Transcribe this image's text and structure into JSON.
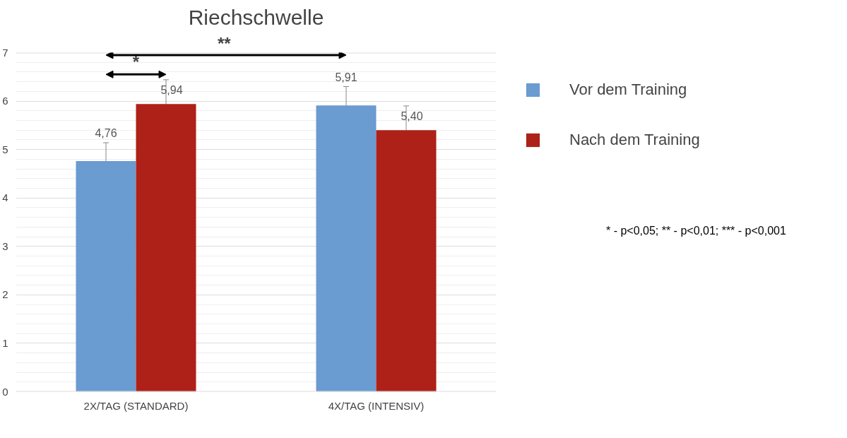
{
  "chart_data": {
    "type": "bar",
    "title": "Riechschwelle",
    "categories": [
      "2X/TAG (STANDARD)",
      "4X/TAG (INTENSIV)"
    ],
    "series": [
      {
        "name": "Vor dem Training",
        "color": "#6a9bd1",
        "values": [
          4.76,
          5.91
        ],
        "errors": [
          0.38,
          0.39
        ],
        "value_labels": [
          "4,76",
          "5,91"
        ]
      },
      {
        "name": "Nach dem Training",
        "color": "#ae2118",
        "values": [
          5.94,
          5.4
        ],
        "errors": [
          0.5,
          0.5
        ],
        "value_labels": [
          "5,94",
          "5,40"
        ]
      }
    ],
    "ylim": [
      0,
      7
    ],
    "yticks": [
      0,
      1,
      2,
      3,
      4,
      5,
      6,
      7
    ],
    "grid": "y",
    "legend": "right",
    "annotations": [
      "*",
      "**",
      "* - p<0,05; ** - p<0,01; *** - p<0,001"
    ]
  }
}
